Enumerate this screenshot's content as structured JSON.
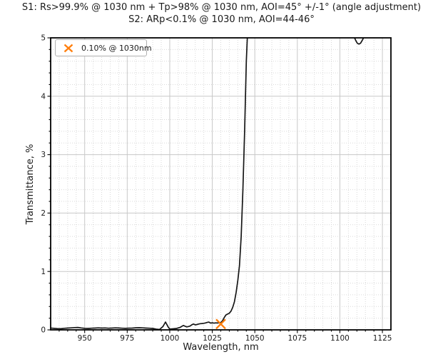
{
  "title": {
    "line1": "S1: Rs>99.9% @ 1030 nm + Tp>98% @ 1030 nm, AOI=45° +/-1° (angle adjustment)",
    "line2": "S2: ARp<0.1% @ 1030 nm, AOI=44-46°"
  },
  "legend": {
    "label": "0.10% @ 1030nm",
    "marker_shape": "x",
    "marker_color": "#ff7f0e",
    "position": "upper-left"
  },
  "colors": {
    "curve": "#161616",
    "spine": "#000000",
    "major_grid": "#c8c8c8",
    "minor_grid": "#d9d9d9",
    "marker": "#ff7f0e",
    "background": "#ffffff"
  },
  "chart_data": {
    "type": "line",
    "title": "S1: Rs>99.9% @ 1030 nm + Tp>98% @ 1030 nm, AOI=45° +/-1° (angle adjustment)\nS2: ARp<0.1% @ 1030 nm, AOI=44-46°",
    "xlabel": "Wavelength, nm",
    "ylabel": "Transmittance, %",
    "xlim": [
      930,
      1130
    ],
    "ylim": [
      0,
      5
    ],
    "xticks_major": [
      950,
      975,
      1000,
      1025,
      1050,
      1075,
      1100,
      1125
    ],
    "xtick_minor_step": 5,
    "yticks_major": [
      0,
      1,
      2,
      3,
      4,
      5
    ],
    "ytick_minor_step": 0.2,
    "grid": {
      "major": true,
      "minor": true,
      "minor_style": "dotted",
      "legend_position": "upper-left"
    },
    "series": [
      {
        "name": "transmittance-curve",
        "points": [
          [
            930,
            0.03
          ],
          [
            932,
            0.026
          ],
          [
            934,
            0.022
          ],
          [
            936,
            0.02
          ],
          [
            938,
            0.027
          ],
          [
            940,
            0.031
          ],
          [
            942,
            0.034
          ],
          [
            944,
            0.039
          ],
          [
            946,
            0.042
          ],
          [
            948,
            0.033
          ],
          [
            950,
            0.026
          ],
          [
            952,
            0.024
          ],
          [
            954,
            0.028
          ],
          [
            956,
            0.031
          ],
          [
            958,
            0.034
          ],
          [
            960,
            0.03
          ],
          [
            962,
            0.033
          ],
          [
            964,
            0.028
          ],
          [
            966,
            0.031
          ],
          [
            968,
            0.034
          ],
          [
            970,
            0.032
          ],
          [
            972,
            0.028
          ],
          [
            974,
            0.026
          ],
          [
            976,
            0.029
          ],
          [
            978,
            0.031
          ],
          [
            980,
            0.035
          ],
          [
            982,
            0.037
          ],
          [
            984,
            0.034
          ],
          [
            986,
            0.03
          ],
          [
            988,
            0.028
          ],
          [
            990,
            0.024
          ],
          [
            992,
            0.012
          ],
          [
            994,
            0.006
          ],
          [
            996,
            0.058
          ],
          [
            997.5,
            0.135
          ],
          [
            999,
            0.052
          ],
          [
            1000,
            0.014
          ],
          [
            1002,
            0.018
          ],
          [
            1004,
            0.025
          ],
          [
            1006,
            0.042
          ],
          [
            1008,
            0.076
          ],
          [
            1009,
            0.062
          ],
          [
            1010,
            0.051
          ],
          [
            1011,
            0.058
          ],
          [
            1012,
            0.066
          ],
          [
            1013,
            0.088
          ],
          [
            1014,
            0.1
          ],
          [
            1015,
            0.086
          ],
          [
            1016,
            0.092
          ],
          [
            1017,
            0.1
          ],
          [
            1018,
            0.106
          ],
          [
            1019,
            0.109
          ],
          [
            1020,
            0.112
          ],
          [
            1021,
            0.118
          ],
          [
            1022,
            0.127
          ],
          [
            1023,
            0.133
          ],
          [
            1024,
            0.116
          ],
          [
            1025,
            0.121
          ],
          [
            1026,
            0.115
          ],
          [
            1027,
            0.12
          ],
          [
            1028,
            0.117
          ],
          [
            1029,
            0.121
          ],
          [
            1030,
            0.126
          ],
          [
            1031,
            0.155
          ],
          [
            1032,
            0.21
          ],
          [
            1033,
            0.255
          ],
          [
            1034,
            0.27
          ],
          [
            1035,
            0.285
          ],
          [
            1036,
            0.32
          ],
          [
            1037,
            0.385
          ],
          [
            1038,
            0.48
          ],
          [
            1039,
            0.64
          ],
          [
            1040,
            0.85
          ],
          [
            1041,
            1.1
          ],
          [
            1042,
            1.6
          ],
          [
            1043,
            2.4
          ],
          [
            1044,
            3.4
          ],
          [
            1045,
            4.6
          ],
          [
            1045.6,
            5.0
          ]
        ]
      },
      {
        "name": "transmittance-curve-notch",
        "points": [
          [
            1108.6,
            5.0
          ],
          [
            1109.4,
            4.95
          ],
          [
            1110.2,
            4.91
          ],
          [
            1111.2,
            4.893
          ],
          [
            1112.2,
            4.91
          ],
          [
            1113.2,
            4.96
          ],
          [
            1113.9,
            5.0
          ]
        ]
      }
    ],
    "annotation_marker": {
      "x": 1030,
      "y": 0.1,
      "shape": "x",
      "label": "0.10% @ 1030nm"
    }
  }
}
